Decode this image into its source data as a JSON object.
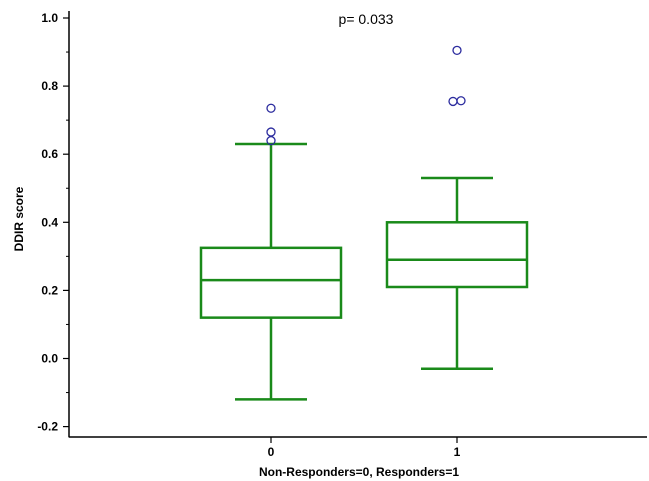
{
  "chart_data": {
    "type": "box",
    "annotation": "p= 0.033",
    "xlabel": "Non-Responders=0, Responders=1",
    "ylabel": "DDIR score",
    "ylim": [
      -0.22,
      1.02
    ],
    "yticks": [
      "-0.2",
      "0.0",
      "0.2",
      "0.4",
      "0.6",
      "0.8",
      "1.0"
    ],
    "categories": [
      "0",
      "1"
    ],
    "boxes": [
      {
        "category": "0",
        "whisker_low": -0.12,
        "q1": 0.12,
        "median": 0.23,
        "q3": 0.325,
        "whisker_high": 0.63,
        "outliers": [
          0.64,
          0.665,
          0.735
        ]
      },
      {
        "category": "1",
        "whisker_low": -0.03,
        "q1": 0.21,
        "median": 0.29,
        "q3": 0.4,
        "whisker_high": 0.53,
        "outliers": [
          0.755,
          0.757,
          0.905
        ]
      }
    ],
    "colors": {
      "box": "#1a8a1a",
      "outlier": "#2b2b9e",
      "axis": "#000000"
    }
  }
}
